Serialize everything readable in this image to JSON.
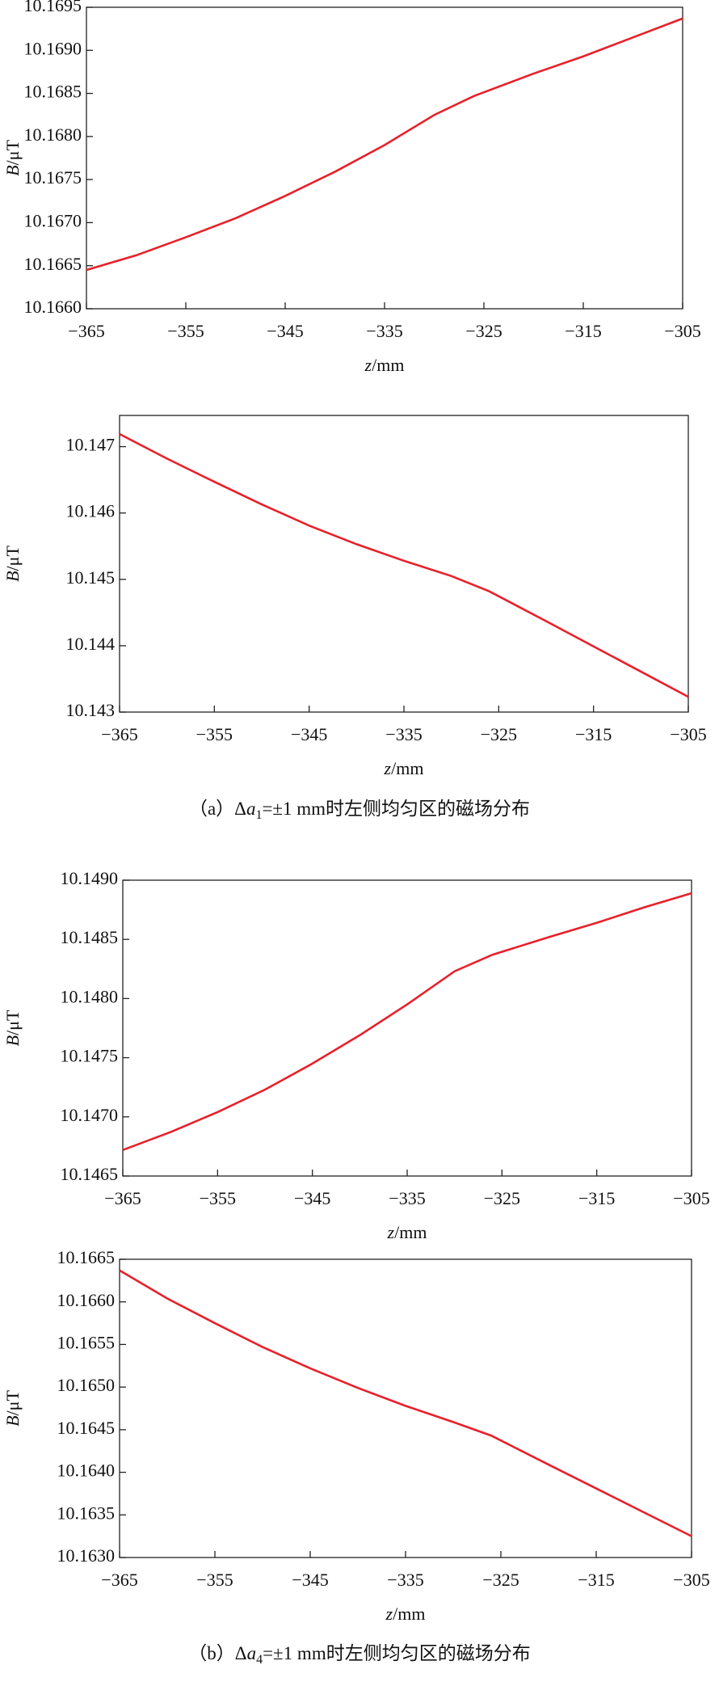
{
  "chart_data": [
    {
      "type": "line",
      "ylabel_var": "B",
      "ylabel_unit": "/μT",
      "xlabel_var": "z",
      "xlabel_unit": "/mm",
      "x": [
        -365,
        -360,
        -355,
        -350,
        -345,
        -340,
        -335,
        -330,
        -326,
        -320,
        -315,
        -310,
        -305
      ],
      "series": [
        {
          "color": "#e8202a",
          "values": [
            10.16645,
            10.16662,
            10.16683,
            10.16705,
            10.16731,
            10.16759,
            10.1679,
            10.16825,
            10.16847,
            10.16873,
            10.16893,
            10.16915,
            10.16937
          ]
        }
      ],
      "xlim": [
        -365,
        -305
      ],
      "xticks": [
        {
          "value": -365,
          "label": "−365"
        },
        {
          "value": -355,
          "label": "−355"
        },
        {
          "value": -345,
          "label": "−345"
        },
        {
          "value": -335,
          "label": "−335"
        },
        {
          "value": -325,
          "label": "−325"
        },
        {
          "value": -315,
          "label": "−315"
        },
        {
          "value": -305,
          "label": "−305"
        }
      ],
      "ylim": [
        10.166,
        10.1695
      ],
      "yticks": [
        {
          "value": 10.166,
          "label": "10.1660"
        },
        10.1665,
        {
          "value": 10.167,
          "label": "10.1670"
        },
        10.1675,
        {
          "value": 10.168,
          "label": "10.1680"
        },
        10.1685,
        {
          "value": 10.169,
          "label": "10.1690"
        },
        10.1695
      ]
    },
    {
      "type": "line",
      "ylabel_var": "B",
      "ylabel_unit": "/μT",
      "xlabel_var": "z",
      "xlabel_unit": "/mm",
      "x": [
        -365,
        -360,
        -355,
        -350,
        -345,
        -340,
        -335,
        -330,
        -326,
        -320,
        -315,
        -310,
        -305
      ],
      "series": [
        {
          "color": "#e8202a",
          "values": [
            10.14719,
            10.14682,
            10.14647,
            10.14613,
            10.14581,
            10.14553,
            10.14528,
            10.14505,
            10.14482,
            10.14437,
            10.14399,
            10.14361,
            10.14323
          ]
        }
      ],
      "xlim": [
        -365,
        -305
      ],
      "xticks": [
        {
          "value": -365,
          "label": "−365"
        },
        {
          "value": -355,
          "label": "−355"
        },
        {
          "value": -345,
          "label": "−345"
        },
        {
          "value": -335,
          "label": "−335"
        },
        {
          "value": -325,
          "label": "−325"
        },
        {
          "value": -315,
          "label": "−315"
        },
        {
          "value": -305,
          "label": "−305"
        }
      ],
      "ylim": [
        10.143,
        10.14747
      ],
      "yticks": [
        10.143,
        10.144,
        10.145,
        10.146,
        10.147
      ]
    },
    {
      "type": "line",
      "ylabel_var": "B",
      "ylabel_unit": "/μT",
      "xlabel_var": "z",
      "xlabel_unit": "/mm",
      "x": [
        -365,
        -360,
        -355,
        -350,
        -345,
        -340,
        -335,
        -330,
        -326,
        -320,
        -315,
        -310,
        -305
      ],
      "series": [
        {
          "color": "#e8202a",
          "values": [
            10.14672,
            10.14687,
            10.14704,
            10.14723,
            10.14745,
            10.14769,
            10.14795,
            10.14823,
            10.14837,
            10.14852,
            10.14864,
            10.14877,
            10.14889
          ]
        }
      ],
      "xlim": [
        -365,
        -305
      ],
      "xticks": [
        {
          "value": -365,
          "label": "−365"
        },
        {
          "value": -355,
          "label": "−355"
        },
        {
          "value": -345,
          "label": "−345"
        },
        {
          "value": -335,
          "label": "−335"
        },
        {
          "value": -325,
          "label": "−325"
        },
        {
          "value": -315,
          "label": "−315"
        },
        {
          "value": -305,
          "label": "−305"
        }
      ],
      "ylim": [
        10.1465,
        10.149
      ],
      "yticks": [
        10.1465,
        {
          "value": 10.147,
          "label": "10.1470"
        },
        10.1475,
        {
          "value": 10.148,
          "label": "10.1480"
        },
        10.1485,
        {
          "value": 10.149,
          "label": "10.1490"
        }
      ]
    },
    {
      "type": "line",
      "ylabel_var": "B",
      "ylabel_unit": "/μT",
      "xlabel_var": "z",
      "xlabel_unit": "/mm",
      "x": [
        -365,
        -360,
        -355,
        -350,
        -345,
        -340,
        -335,
        -330,
        -326,
        -320,
        -315,
        -310,
        -305
      ],
      "series": [
        {
          "color": "#e8202a",
          "values": [
            10.16637,
            10.16604,
            10.16575,
            10.16547,
            10.16522,
            10.16499,
            10.16478,
            10.16459,
            10.16443,
            10.16409,
            10.16381,
            10.16353,
            10.16325
          ]
        }
      ],
      "xlim": [
        -365,
        -305
      ],
      "xticks": [
        {
          "value": -365,
          "label": "−365"
        },
        {
          "value": -355,
          "label": "−355"
        },
        {
          "value": -345,
          "label": "−345"
        },
        {
          "value": -335,
          "label": "−335"
        },
        {
          "value": -325,
          "label": "−325"
        },
        {
          "value": -315,
          "label": "−315"
        },
        {
          "value": -305,
          "label": "−305"
        }
      ],
      "ylim": [
        10.163,
        10.1665
      ],
      "yticks": [
        {
          "value": 10.163,
          "label": "10.1630"
        },
        10.1635,
        {
          "value": 10.164,
          "label": "10.1640"
        },
        10.1645,
        {
          "value": 10.165,
          "label": "10.1650"
        },
        10.1655,
        {
          "value": 10.166,
          "label": "10.1660"
        },
        10.1665
      ]
    }
  ],
  "captions": [
    {
      "prefix": "（a）Δ",
      "var": "a",
      "sub": "1",
      "suffix": "=±1 mm时左侧均匀区的磁场分布"
    },
    {
      "prefix": "（b）Δ",
      "var": "a",
      "sub": "4",
      "suffix": "=±1 mm时左侧均匀区的磁场分布"
    }
  ]
}
